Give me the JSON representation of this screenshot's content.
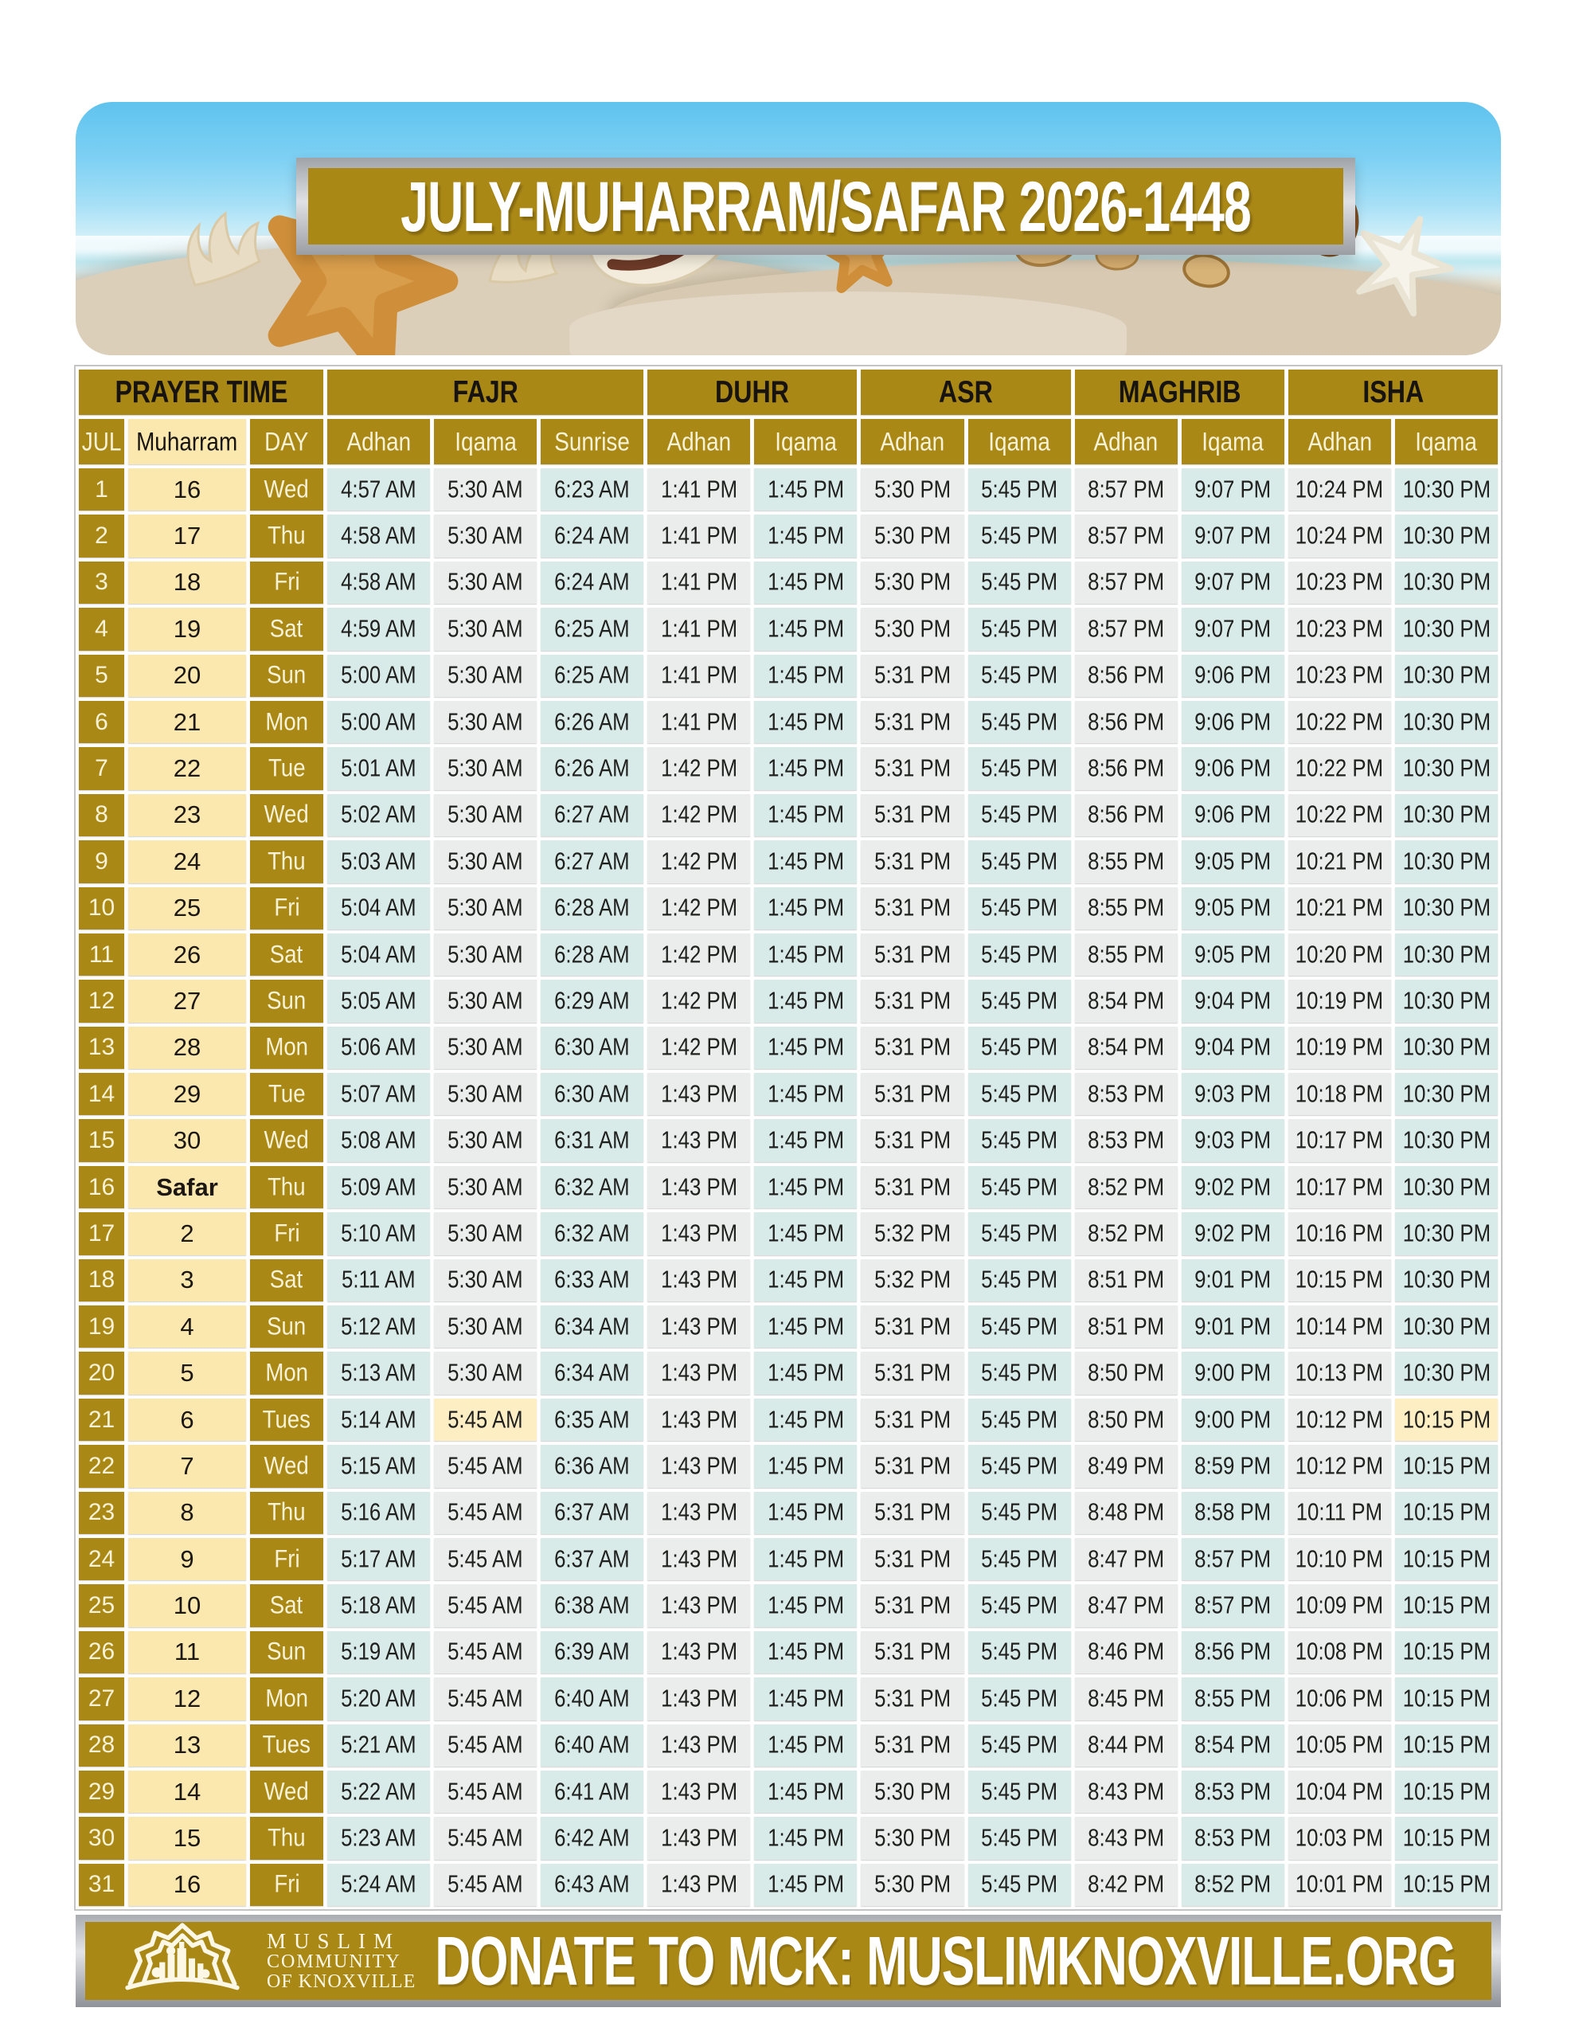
{
  "header": {
    "title": "JULY-MUHARRAM/SAFAR 2026-1448"
  },
  "table": {
    "group_headers": [
      "PRAYER TIME",
      "FAJR",
      "DUHR",
      "ASR",
      "MAGHRIB",
      "ISHA"
    ],
    "sub_headers": [
      "JUL",
      "Muharram",
      "DAY",
      "Adhan",
      "Iqama",
      "Sunrise",
      "Adhan",
      "Iqama",
      "Adhan",
      "Iqama",
      "Adhan",
      "Iqama",
      "Adhan",
      "Iqama"
    ],
    "rows": [
      {
        "jul": "1",
        "hijri": "16",
        "day": "Wed",
        "times": [
          "4:57 AM",
          "5:30 AM",
          "6:23 AM",
          "1:41 PM",
          "1:45 PM",
          "5:30 PM",
          "5:45 PM",
          "8:57 PM",
          "9:07 PM",
          "10:24 PM",
          "10:30 PM"
        ]
      },
      {
        "jul": "2",
        "hijri": "17",
        "day": "Thu",
        "times": [
          "4:58 AM",
          "5:30 AM",
          "6:24 AM",
          "1:41 PM",
          "1:45 PM",
          "5:30 PM",
          "5:45 PM",
          "8:57 PM",
          "9:07 PM",
          "10:24 PM",
          "10:30 PM"
        ]
      },
      {
        "jul": "3",
        "hijri": "18",
        "day": "Fri",
        "times": [
          "4:58 AM",
          "5:30 AM",
          "6:24 AM",
          "1:41 PM",
          "1:45 PM",
          "5:30 PM",
          "5:45 PM",
          "8:57 PM",
          "9:07 PM",
          "10:23 PM",
          "10:30 PM"
        ]
      },
      {
        "jul": "4",
        "hijri": "19",
        "day": "Sat",
        "times": [
          "4:59 AM",
          "5:30 AM",
          "6:25 AM",
          "1:41 PM",
          "1:45 PM",
          "5:30 PM",
          "5:45 PM",
          "8:57 PM",
          "9:07 PM",
          "10:23 PM",
          "10:30 PM"
        ]
      },
      {
        "jul": "5",
        "hijri": "20",
        "day": "Sun",
        "times": [
          "5:00 AM",
          "5:30 AM",
          "6:25 AM",
          "1:41 PM",
          "1:45 PM",
          "5:31 PM",
          "5:45 PM",
          "8:56 PM",
          "9:06 PM",
          "10:23 PM",
          "10:30 PM"
        ]
      },
      {
        "jul": "6",
        "hijri": "21",
        "day": "Mon",
        "times": [
          "5:00 AM",
          "5:30 AM",
          "6:26 AM",
          "1:41 PM",
          "1:45 PM",
          "5:31 PM",
          "5:45 PM",
          "8:56 PM",
          "9:06 PM",
          "10:22 PM",
          "10:30 PM"
        ]
      },
      {
        "jul": "7",
        "hijri": "22",
        "day": "Tue",
        "times": [
          "5:01 AM",
          "5:30 AM",
          "6:26 AM",
          "1:42 PM",
          "1:45 PM",
          "5:31 PM",
          "5:45 PM",
          "8:56 PM",
          "9:06 PM",
          "10:22 PM",
          "10:30 PM"
        ]
      },
      {
        "jul": "8",
        "hijri": "23",
        "day": "Wed",
        "times": [
          "5:02 AM",
          "5:30 AM",
          "6:27 AM",
          "1:42 PM",
          "1:45 PM",
          "5:31 PM",
          "5:45 PM",
          "8:56 PM",
          "9:06 PM",
          "10:22 PM",
          "10:30 PM"
        ]
      },
      {
        "jul": "9",
        "hijri": "24",
        "day": "Thu",
        "times": [
          "5:03 AM",
          "5:30 AM",
          "6:27 AM",
          "1:42 PM",
          "1:45 PM",
          "5:31 PM",
          "5:45 PM",
          "8:55 PM",
          "9:05 PM",
          "10:21 PM",
          "10:30 PM"
        ]
      },
      {
        "jul": "10",
        "hijri": "25",
        "day": "Fri",
        "times": [
          "5:04 AM",
          "5:30 AM",
          "6:28 AM",
          "1:42 PM",
          "1:45 PM",
          "5:31 PM",
          "5:45 PM",
          "8:55 PM",
          "9:05 PM",
          "10:21 PM",
          "10:30 PM"
        ]
      },
      {
        "jul": "11",
        "hijri": "26",
        "day": "Sat",
        "times": [
          "5:04 AM",
          "5:30 AM",
          "6:28 AM",
          "1:42 PM",
          "1:45 PM",
          "5:31 PM",
          "5:45 PM",
          "8:55 PM",
          "9:05 PM",
          "10:20 PM",
          "10:30 PM"
        ]
      },
      {
        "jul": "12",
        "hijri": "27",
        "day": "Sun",
        "times": [
          "5:05 AM",
          "5:30 AM",
          "6:29 AM",
          "1:42 PM",
          "1:45 PM",
          "5:31 PM",
          "5:45 PM",
          "8:54 PM",
          "9:04 PM",
          "10:19 PM",
          "10:30 PM"
        ]
      },
      {
        "jul": "13",
        "hijri": "28",
        "day": "Mon",
        "times": [
          "5:06 AM",
          "5:30 AM",
          "6:30 AM",
          "1:42 PM",
          "1:45 PM",
          "5:31 PM",
          "5:45 PM",
          "8:54 PM",
          "9:04 PM",
          "10:19 PM",
          "10:30 PM"
        ]
      },
      {
        "jul": "14",
        "hijri": "29",
        "day": "Tue",
        "times": [
          "5:07 AM",
          "5:30 AM",
          "6:30 AM",
          "1:43 PM",
          "1:45 PM",
          "5:31 PM",
          "5:45 PM",
          "8:53 PM",
          "9:03 PM",
          "10:18 PM",
          "10:30 PM"
        ]
      },
      {
        "jul": "15",
        "hijri": "30",
        "day": "Wed",
        "times": [
          "5:08 AM",
          "5:30 AM",
          "6:31 AM",
          "1:43 PM",
          "1:45 PM",
          "5:31 PM",
          "5:45 PM",
          "8:53 PM",
          "9:03 PM",
          "10:17 PM",
          "10:30 PM"
        ]
      },
      {
        "jul": "16",
        "hijri": "Safar",
        "day": "Thu",
        "times": [
          "5:09 AM",
          "5:30 AM",
          "6:32 AM",
          "1:43 PM",
          "1:45 PM",
          "5:31 PM",
          "5:45 PM",
          "8:52 PM",
          "9:02 PM",
          "10:17 PM",
          "10:30 PM"
        ]
      },
      {
        "jul": "17",
        "hijri": "2",
        "day": "Fri",
        "times": [
          "5:10 AM",
          "5:30 AM",
          "6:32 AM",
          "1:43 PM",
          "1:45 PM",
          "5:32 PM",
          "5:45 PM",
          "8:52 PM",
          "9:02 PM",
          "10:16 PM",
          "10:30 PM"
        ]
      },
      {
        "jul": "18",
        "hijri": "3",
        "day": "Sat",
        "times": [
          "5:11 AM",
          "5:30 AM",
          "6:33 AM",
          "1:43 PM",
          "1:45 PM",
          "5:32 PM",
          "5:45 PM",
          "8:51 PM",
          "9:01 PM",
          "10:15 PM",
          "10:30 PM"
        ]
      },
      {
        "jul": "19",
        "hijri": "4",
        "day": "Sun",
        "times": [
          "5:12 AM",
          "5:30 AM",
          "6:34 AM",
          "1:43 PM",
          "1:45 PM",
          "5:31 PM",
          "5:45 PM",
          "8:51 PM",
          "9:01 PM",
          "10:14 PM",
          "10:30 PM"
        ]
      },
      {
        "jul": "20",
        "hijri": "5",
        "day": "Mon",
        "times": [
          "5:13 AM",
          "5:30 AM",
          "6:34 AM",
          "1:43 PM",
          "1:45 PM",
          "5:31 PM",
          "5:45 PM",
          "8:50 PM",
          "9:00 PM",
          "10:13 PM",
          "10:30 PM"
        ]
      },
      {
        "jul": "21",
        "hijri": "6",
        "day": "Tues",
        "times": [
          "5:14 AM",
          "5:45 AM",
          "6:35 AM",
          "1:43 PM",
          "1:45 PM",
          "5:31 PM",
          "5:45 PM",
          "8:50 PM",
          "9:00 PM",
          "10:12 PM",
          "10:15 PM"
        ]
      },
      {
        "jul": "22",
        "hijri": "7",
        "day": "Wed",
        "times": [
          "5:15 AM",
          "5:45 AM",
          "6:36 AM",
          "1:43 PM",
          "1:45 PM",
          "5:31 PM",
          "5:45 PM",
          "8:49 PM",
          "8:59 PM",
          "10:12 PM",
          "10:15 PM"
        ]
      },
      {
        "jul": "23",
        "hijri": "8",
        "day": "Thu",
        "times": [
          "5:16 AM",
          "5:45 AM",
          "6:37 AM",
          "1:43 PM",
          "1:45 PM",
          "5:31 PM",
          "5:45 PM",
          "8:48 PM",
          "8:58 PM",
          "10:11 PM",
          "10:15 PM"
        ]
      },
      {
        "jul": "24",
        "hijri": "9",
        "day": "Fri",
        "times": [
          "5:17 AM",
          "5:45 AM",
          "6:37 AM",
          "1:43 PM",
          "1:45 PM",
          "5:31 PM",
          "5:45 PM",
          "8:47 PM",
          "8:57 PM",
          "10:10 PM",
          "10:15 PM"
        ]
      },
      {
        "jul": "25",
        "hijri": "10",
        "day": "Sat",
        "times": [
          "5:18 AM",
          "5:45 AM",
          "6:38 AM",
          "1:43 PM",
          "1:45 PM",
          "5:31 PM",
          "5:45 PM",
          "8:47 PM",
          "8:57 PM",
          "10:09 PM",
          "10:15 PM"
        ]
      },
      {
        "jul": "26",
        "hijri": "11",
        "day": "Sun",
        "times": [
          "5:19 AM",
          "5:45 AM",
          "6:39 AM",
          "1:43 PM",
          "1:45 PM",
          "5:31 PM",
          "5:45 PM",
          "8:46 PM",
          "8:56 PM",
          "10:08 PM",
          "10:15 PM"
        ]
      },
      {
        "jul": "27",
        "hijri": "12",
        "day": "Mon",
        "times": [
          "5:20 AM",
          "5:45 AM",
          "6:40 AM",
          "1:43 PM",
          "1:45 PM",
          "5:31 PM",
          "5:45 PM",
          "8:45 PM",
          "8:55 PM",
          "10:06 PM",
          "10:15 PM"
        ]
      },
      {
        "jul": "28",
        "hijri": "13",
        "day": "Tues",
        "times": [
          "5:21 AM",
          "5:45 AM",
          "6:40 AM",
          "1:43 PM",
          "1:45 PM",
          "5:31 PM",
          "5:45 PM",
          "8:44 PM",
          "8:54 PM",
          "10:05 PM",
          "10:15 PM"
        ]
      },
      {
        "jul": "29",
        "hijri": "14",
        "day": "Wed",
        "times": [
          "5:22 AM",
          "5:45 AM",
          "6:41 AM",
          "1:43 PM",
          "1:45 PM",
          "5:30 PM",
          "5:45 PM",
          "8:43 PM",
          "8:53 PM",
          "10:04 PM",
          "10:15 PM"
        ]
      },
      {
        "jul": "30",
        "hijri": "15",
        "day": "Thu",
        "times": [
          "5:23 AM",
          "5:45 AM",
          "6:42 AM",
          "1:43 PM",
          "1:45 PM",
          "5:30 PM",
          "5:45 PM",
          "8:43 PM",
          "8:53 PM",
          "10:03 PM",
          "10:15 PM"
        ]
      },
      {
        "jul": "31",
        "hijri": "16",
        "day": "Fri",
        "times": [
          "5:24 AM",
          "5:45 AM",
          "6:43 AM",
          "1:43 PM",
          "1:45 PM",
          "5:30 PM",
          "5:45 PM",
          "8:42 PM",
          "8:52 PM",
          "10:01 PM",
          "10:15 PM"
        ]
      }
    ],
    "highlights": {
      "21": [
        1,
        10
      ]
    }
  },
  "footer": {
    "org_line1": "MUSLIM",
    "org_line2": "COMMUNITY",
    "org_line3": "OF KNOXVILLE",
    "donate_text": "DONATE TO MCK: MUSLIMKNOXVILLE.ORG"
  },
  "colors": {
    "gold": "#aa8816",
    "cream_column": "#fbe8af",
    "cell_blue": "#d8ebe9",
    "cell_gray": "#ebedec",
    "highlight_cream": "#fdeec4",
    "silver_frame": "#c9cbd0",
    "header_text_dark": "#171310",
    "subheader_text": "#f8f2d6"
  }
}
